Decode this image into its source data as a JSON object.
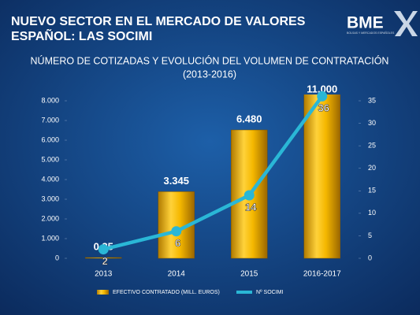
{
  "header": {
    "title_lines": [
      "NUEVO SECTOR EN EL MERCADO DE VALORES",
      "ESPAÑOL: LAS SOCIMI"
    ],
    "logo": "BME",
    "logo_caption": "BOLSAS Y MERCADOS ESPAÑOLES"
  },
  "chart_data": {
    "type": "bar",
    "title": "NÚMERO DE COTIZADAS Y EVOLUCIÓN DEL VOLUMEN DE CONTRATACIÓN",
    "subtitle": "(2013-2016)",
    "categories": [
      "2013",
      "2014",
      "2015",
      "2016-2017"
    ],
    "series": [
      {
        "name": "EFECTIVO CONTRATADO (MILL. EUROS)",
        "type": "bar",
        "color": "#f2b705",
        "values": [
          0.25,
          3345,
          6480,
          11000
        ],
        "value_labels": [
          "0,25",
          "3.345",
          "6.480",
          "11.000"
        ]
      },
      {
        "name": "Nº SOCIMI",
        "type": "line",
        "axis": "y2",
        "color": "#2ab7d6",
        "values": [
          2,
          6,
          14,
          36
        ]
      }
    ],
    "ylim": [
      0,
      8000
    ],
    "yticks": [
      0,
      {
        "value": 1000,
        "label": "1.000"
      },
      {
        "value": 2000,
        "label": "2.000"
      },
      {
        "value": 3000,
        "label": "3.000"
      },
      {
        "value": 4000,
        "label": "4.000"
      },
      {
        "value": 5000,
        "label": "5.000"
      },
      {
        "value": 6000,
        "label": "6.000"
      },
      {
        "value": 7000,
        "label": "7.000"
      },
      {
        "value": 8000,
        "label": "8.000"
      }
    ],
    "y2lim": [
      0,
      35
    ],
    "y2ticks": [
      0,
      5,
      10,
      15,
      20,
      25,
      30,
      35
    ],
    "grid": false
  }
}
